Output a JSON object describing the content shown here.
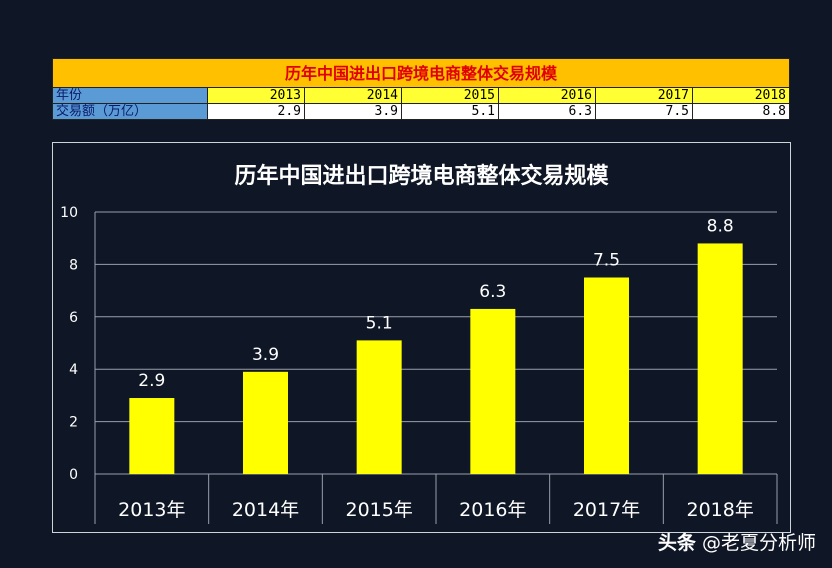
{
  "table": {
    "title": "历年中国进出口跨境电商整体交易规模",
    "row_labels": [
      "年份",
      "交易额（万亿）"
    ],
    "years": [
      "2013",
      "2014",
      "2015",
      "2016",
      "2017",
      "2018"
    ],
    "values": [
      "2.9",
      "3.9",
      "5.1",
      "6.3",
      "7.5",
      "8.8"
    ]
  },
  "chart_data": {
    "type": "bar",
    "title": "历年中国进出口跨境电商整体交易规模",
    "categories": [
      "2013年",
      "2014年",
      "2015年",
      "2016年",
      "2017年",
      "2018年"
    ],
    "values": [
      2.9,
      3.9,
      5.1,
      6.3,
      7.5,
      8.8
    ],
    "data_labels": [
      "2.9",
      "3.9",
      "5.1",
      "6.3",
      "7.5",
      "8.8"
    ],
    "ylim": [
      0,
      10
    ],
    "yticks": [
      "0",
      "2",
      "4",
      "6",
      "8",
      "10"
    ],
    "xlabel": "",
    "ylabel": "",
    "grid": true,
    "bar_color": "#ffff00"
  },
  "watermark": {
    "brand": "头条",
    "handle": "@老夏分析师"
  }
}
